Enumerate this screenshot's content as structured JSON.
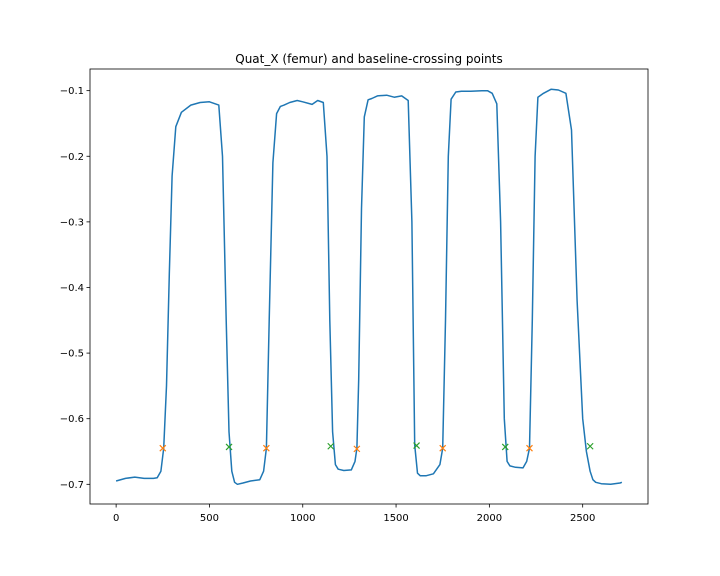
{
  "chart_data": {
    "type": "line",
    "title": "Quat_X (femur) and baseline-crossing points",
    "xlabel": "",
    "ylabel": "",
    "xlim": [
      -140,
      2850
    ],
    "ylim": [
      -0.73,
      -0.067
    ],
    "xticks": [
      {
        "value": 0,
        "label": "0"
      },
      {
        "value": 500,
        "label": "500"
      },
      {
        "value": 1000,
        "label": "1000"
      },
      {
        "value": 1500,
        "label": "1500"
      },
      {
        "value": 2000,
        "label": "2000"
      },
      {
        "value": 2500,
        "label": "2500"
      }
    ],
    "yticks": [
      {
        "value": -0.1,
        "label": "−0.1"
      },
      {
        "value": -0.2,
        "label": "−0.2"
      },
      {
        "value": -0.3,
        "label": "−0.3"
      },
      {
        "value": -0.4,
        "label": "−0.4"
      },
      {
        "value": -0.5,
        "label": "−0.5"
      },
      {
        "value": -0.6,
        "label": "−0.6"
      },
      {
        "value": -0.7,
        "label": "−0.7"
      }
    ],
    "grid": false,
    "legend": "none",
    "colors": {
      "line": "#1f77b4",
      "rising_markers": "#ff7f0e",
      "falling_markers": "#2ca02c"
    },
    "series": [
      {
        "kind": "line",
        "x": [
          0,
          50,
          100,
          150,
          200,
          220,
          240,
          255,
          270,
          285,
          300,
          320,
          350,
          400,
          450,
          500,
          550,
          570,
          590,
          605,
          620,
          635,
          650,
          680,
          720,
          770,
          790,
          805,
          820,
          840,
          860,
          880,
          900,
          930,
          970,
          1000,
          1050,
          1080,
          1110,
          1130,
          1145,
          1160,
          1175,
          1190,
          1220,
          1260,
          1280,
          1290,
          1300,
          1315,
          1330,
          1350,
          1370,
          1400,
          1450,
          1490,
          1530,
          1565,
          1585,
          1600,
          1615,
          1630,
          1660,
          1700,
          1735,
          1750,
          1765,
          1780,
          1795,
          1820,
          1850,
          1900,
          1960,
          1990,
          2015,
          2040,
          2060,
          2080,
          2095,
          2110,
          2140,
          2180,
          2200,
          2215,
          2230,
          2245,
          2260,
          2290,
          2330,
          2370,
          2410,
          2440,
          2470,
          2500,
          2520,
          2540,
          2555,
          2570,
          2600,
          2650,
          2700,
          2710
        ],
        "y": [
          -0.695,
          -0.691,
          -0.689,
          -0.691,
          -0.691,
          -0.69,
          -0.68,
          -0.645,
          -0.55,
          -0.38,
          -0.23,
          -0.155,
          -0.133,
          -0.122,
          -0.118,
          -0.117,
          -0.122,
          -0.2,
          -0.45,
          -0.62,
          -0.68,
          -0.697,
          -0.7,
          -0.698,
          -0.695,
          -0.693,
          -0.68,
          -0.645,
          -0.45,
          -0.21,
          -0.135,
          -0.124,
          -0.122,
          -0.118,
          -0.115,
          -0.117,
          -0.121,
          -0.115,
          -0.118,
          -0.2,
          -0.45,
          -0.62,
          -0.67,
          -0.677,
          -0.679,
          -0.678,
          -0.665,
          -0.645,
          -0.54,
          -0.28,
          -0.14,
          -0.114,
          -0.112,
          -0.108,
          -0.107,
          -0.11,
          -0.108,
          -0.115,
          -0.3,
          -0.64,
          -0.683,
          -0.687,
          -0.687,
          -0.684,
          -0.67,
          -0.645,
          -0.45,
          -0.2,
          -0.113,
          -0.102,
          -0.101,
          -0.101,
          -0.1,
          -0.1,
          -0.104,
          -0.12,
          -0.3,
          -0.6,
          -0.665,
          -0.672,
          -0.674,
          -0.675,
          -0.665,
          -0.645,
          -0.45,
          -0.2,
          -0.11,
          -0.104,
          -0.098,
          -0.099,
          -0.104,
          -0.16,
          -0.42,
          -0.6,
          -0.65,
          -0.68,
          -0.693,
          -0.697,
          -0.699,
          -0.7,
          -0.698,
          -0.697
        ]
      },
      {
        "kind": "markers",
        "name": "",
        "color": "#ff7f0e",
        "x": [
          250,
          805,
          1290,
          1750,
          2215
        ],
        "y": [
          -0.645,
          -0.645,
          -0.646,
          -0.645,
          -0.645
        ]
      },
      {
        "kind": "markers",
        "name": "",
        "color": "#2ca02c",
        "x": [
          605,
          1150,
          1610,
          2085,
          2540
        ],
        "y": [
          -0.643,
          -0.642,
          -0.641,
          -0.643,
          -0.642
        ]
      }
    ]
  }
}
